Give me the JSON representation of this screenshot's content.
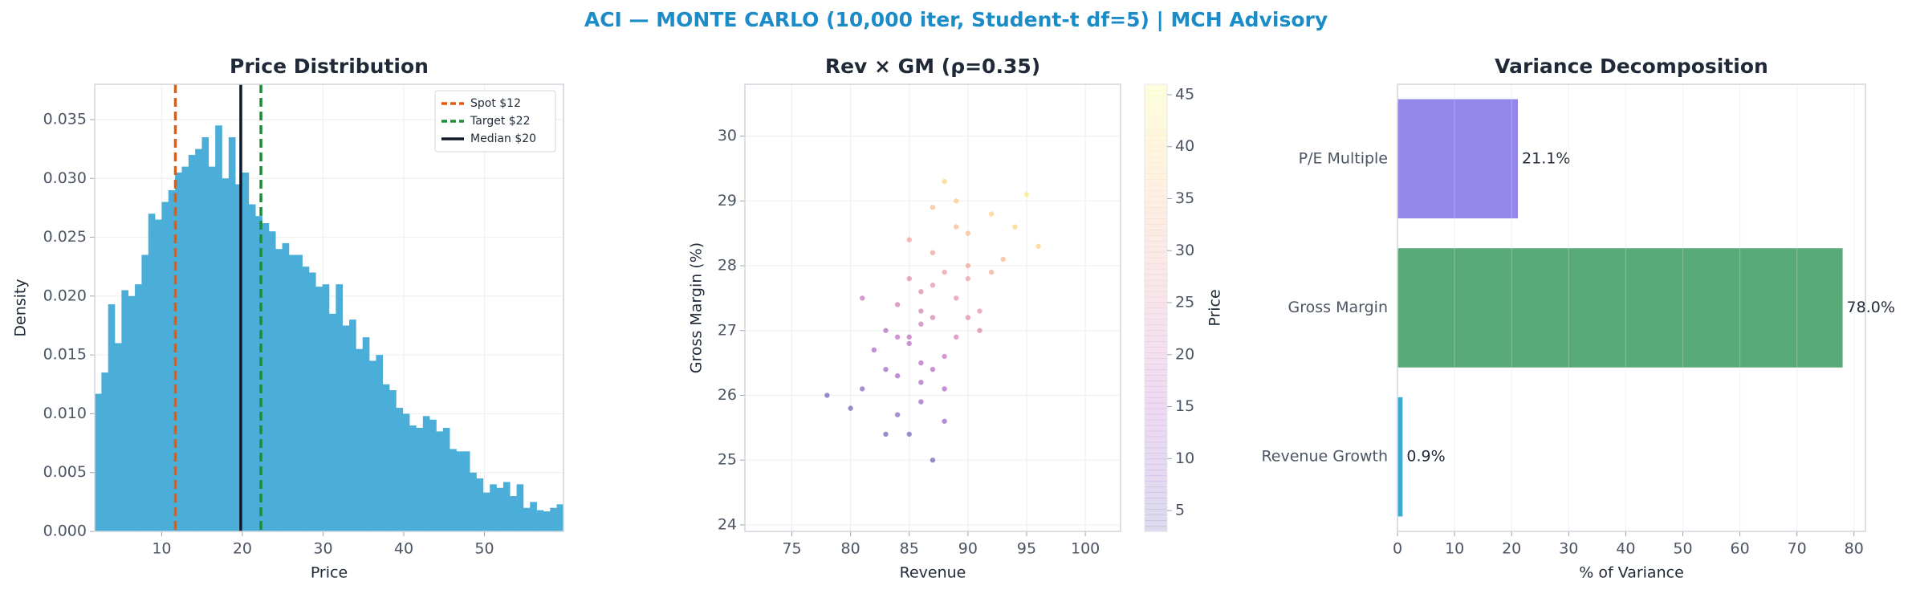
{
  "title": "ACI — MONTE CARLO (10,000 iter, Student-t df=5) | MCH Advisory",
  "chart_data": [
    {
      "type": "histogram",
      "title": "Price Distribution",
      "xlabel": "Price",
      "ylabel": "Density",
      "color": "#4aaed9",
      "bins": [
        1.7,
        2.53,
        3.36,
        4.19,
        5.02,
        5.85,
        6.68,
        7.51,
        8.34,
        9.17,
        10.0,
        10.83,
        11.66,
        12.49,
        13.32,
        14.15,
        14.98,
        15.81,
        16.64,
        17.47,
        18.3,
        19.13,
        19.96,
        20.79,
        21.62,
        22.45,
        23.28,
        24.11,
        24.94,
        25.77,
        26.6,
        27.43,
        28.26,
        29.09,
        29.92,
        30.75,
        31.58,
        32.41,
        33.24,
        34.07,
        34.9,
        35.73,
        36.56,
        37.39,
        38.22,
        39.05,
        39.88,
        40.71,
        41.54,
        42.37,
        43.2,
        44.03,
        44.86,
        45.69,
        46.52,
        47.35,
        48.18,
        49.01,
        49.84,
        50.67,
        51.5,
        52.33,
        53.16,
        53.99,
        54.82,
        55.65,
        56.48,
        57.31,
        58.14,
        58.97,
        59.8
      ],
      "values": [
        0.0117,
        0.0135,
        0.0193,
        0.016,
        0.0205,
        0.02,
        0.021,
        0.0235,
        0.027,
        0.0265,
        0.028,
        0.029,
        0.0305,
        0.031,
        0.032,
        0.0325,
        0.0335,
        0.031,
        0.0345,
        0.03,
        0.0335,
        0.0295,
        0.0305,
        0.0278,
        0.0268,
        0.0262,
        0.0255,
        0.024,
        0.0245,
        0.0235,
        0.0235,
        0.0225,
        0.022,
        0.0208,
        0.021,
        0.0185,
        0.021,
        0.0175,
        0.018,
        0.0155,
        0.0165,
        0.0145,
        0.015,
        0.0125,
        0.012,
        0.0105,
        0.01,
        0.009,
        0.0088,
        0.0098,
        0.0095,
        0.0085,
        0.0088,
        0.007,
        0.0068,
        0.0068,
        0.005,
        0.0045,
        0.0033,
        0.004,
        0.0037,
        0.0042,
        0.003,
        0.004,
        0.002,
        0.0025,
        0.0018,
        0.0017,
        0.002,
        0.0023
      ],
      "xlim": [
        1.7,
        59.8
      ],
      "ylim": [
        0,
        0.038
      ],
      "xticks": [
        10,
        20,
        30,
        40,
        50
      ],
      "yticks": [
        {
          "value": 0,
          "label": "0.000"
        },
        0.005,
        {
          "value": 0.01,
          "label": "0.010"
        },
        0.015,
        {
          "value": 0.02,
          "label": "0.020"
        },
        0.025,
        {
          "value": 0.03,
          "label": "0.030"
        },
        0.035
      ],
      "lines": [
        {
          "name": "Spot $12",
          "x": 11.7,
          "color": "#e8590c",
          "dashed": true
        },
        {
          "name": "Target $22",
          "x": 22.3,
          "color": "#1e8c3a",
          "dashed": true
        },
        {
          "name": "Median $20",
          "x": 19.8,
          "color": "#111827",
          "dashed": false
        }
      ],
      "legend": "upper right",
      "grid": true
    },
    {
      "type": "scatter",
      "title": "Rev × GM (ρ=0.35)",
      "xlabel": "Revenue",
      "ylabel": "Gross Margin (%)",
      "colorbar_label": "Price",
      "colormap": "plasma",
      "x": [
        85,
        87,
        88,
        84,
        90,
        86,
        83,
        89,
        92,
        81,
        86,
        88,
        85,
        87,
        91,
        84,
        89,
        93,
        80,
        86,
        87,
        90,
        85,
        82,
        88,
        94,
        86,
        84,
        89,
        87,
        83,
        91,
        85,
        88,
        96,
        78,
        86,
        90,
        87,
        84,
        92,
        85,
        89,
        86,
        88,
        81,
        95,
        87,
        83,
        90
      ],
      "y": [
        26.8,
        27.2,
        27.9,
        26.3,
        28.5,
        25.9,
        27.0,
        27.5,
        28.8,
        26.1,
        27.6,
        26.6,
        25.4,
        28.2,
        27.3,
        26.9,
        29.0,
        28.1,
        25.8,
        27.1,
        26.4,
        27.8,
        28.4,
        26.7,
        25.6,
        28.6,
        26.2,
        27.4,
        26.9,
        28.9,
        25.4,
        27.0,
        27.8,
        29.3,
        28.3,
        26.0,
        26.5,
        28.0,
        27.7,
        25.7,
        27.9,
        26.9,
        28.6,
        27.3,
        26.1,
        27.5,
        29.1,
        25.0,
        26.4,
        27.2
      ],
      "c": [
        16.6,
        21.6,
        28.1,
        11.7,
        34.7,
        10.3,
        16.4,
        25.8,
        38.9,
        7.4,
        23.9,
        17.7,
        5.4,
        29.6,
        26.0,
        16.5,
        37.8,
        34.2,
        4.1,
        19.9,
        15.2,
        29.1,
        29.4,
        13.1,
        9.7,
        39.1,
        12.7,
        20.5,
        21.0,
        35.2,
        3.6,
        23.6,
        24.6,
        39.3,
        38.5,
        3.9,
        15.1,
        30.7,
        25.6,
        6.9,
        31.7,
        17.4,
        34.6,
        21.5,
        13.7,
        18.6,
        44.0,
        4.0,
        11.6,
        24.3
      ],
      "xlim": [
        71,
        103
      ],
      "ylim": [
        23.9,
        30.8
      ],
      "clim": [
        3,
        46
      ],
      "xticks": [
        75,
        80,
        85,
        90,
        95,
        100
      ],
      "yticks": [
        24,
        25,
        26,
        27,
        28,
        29,
        30
      ],
      "cticks": [
        5,
        10,
        15,
        20,
        25,
        30,
        35,
        40,
        45
      ],
      "grid": true
    },
    {
      "type": "bar",
      "orientation": "horizontal",
      "title": "Variance Decomposition",
      "xlabel": "% of Variance",
      "categories": [
        "Revenue Growth",
        "Gross Margin",
        "P/E Multiple"
      ],
      "values": [
        0.9,
        78.0,
        21.1
      ],
      "value_labels": [
        "0.9%",
        "78.0%",
        "21.1%"
      ],
      "colors": [
        "#2ba3cc",
        "#4aa36e",
        "#8a7de8"
      ],
      "xlim": [
        0,
        82
      ],
      "xticks": [
        0,
        10,
        20,
        30,
        40,
        50,
        60,
        70,
        80
      ],
      "grid": true
    }
  ]
}
